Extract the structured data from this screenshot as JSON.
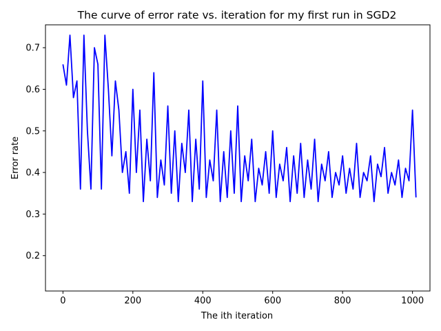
{
  "chart_data": {
    "type": "line",
    "title": "The curve of error rate vs. iteration for my first run in SGD2",
    "xlabel": "The ith iteration",
    "ylabel": "Error rate",
    "xlim": [
      -50,
      1050
    ],
    "ylim": [
      0.115,
      0.755
    ],
    "xticks": [
      0,
      200,
      400,
      600,
      800,
      1000
    ],
    "yticks": [
      0.2,
      0.3,
      0.4,
      0.5,
      0.6,
      0.7
    ],
    "grid": false,
    "legend": "none",
    "series": [
      {
        "color": "#0000ff",
        "x_start": 0,
        "x_step": 10,
        "values": [
          0.66,
          0.61,
          0.73,
          0.58,
          0.62,
          0.36,
          0.73,
          0.5,
          0.36,
          0.7,
          0.66,
          0.36,
          0.73,
          0.6,
          0.44,
          0.62,
          0.55,
          0.4,
          0.45,
          0.35,
          0.6,
          0.4,
          0.55,
          0.33,
          0.48,
          0.38,
          0.64,
          0.34,
          0.43,
          0.37,
          0.56,
          0.35,
          0.5,
          0.33,
          0.47,
          0.4,
          0.55,
          0.33,
          0.48,
          0.36,
          0.62,
          0.34,
          0.43,
          0.38,
          0.55,
          0.33,
          0.45,
          0.34,
          0.5,
          0.35,
          0.56,
          0.33,
          0.44,
          0.38,
          0.48,
          0.33,
          0.41,
          0.37,
          0.45,
          0.35,
          0.5,
          0.34,
          0.42,
          0.38,
          0.46,
          0.33,
          0.44,
          0.35,
          0.47,
          0.34,
          0.43,
          0.36,
          0.48,
          0.33,
          0.42,
          0.38,
          0.45,
          0.34,
          0.4,
          0.37,
          0.44,
          0.35,
          0.41,
          0.36,
          0.47,
          0.34,
          0.4,
          0.38,
          0.44,
          0.33,
          0.42,
          0.39,
          0.46,
          0.35,
          0.4,
          0.37,
          0.43,
          0.34,
          0.41,
          0.38,
          0.55,
          0.34
        ]
      }
    ]
  }
}
